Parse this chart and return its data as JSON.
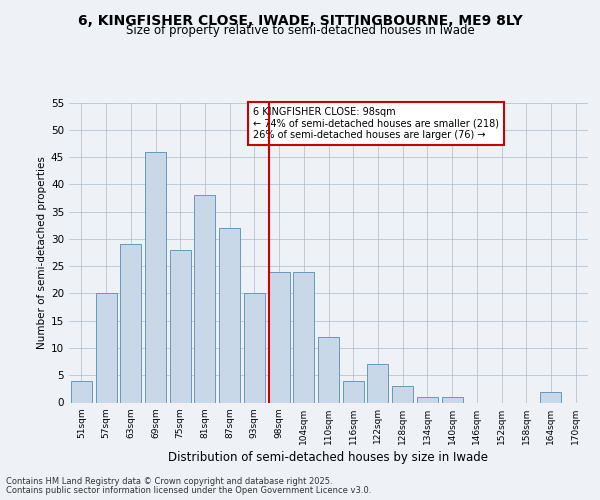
{
  "title1": "6, KINGFISHER CLOSE, IWADE, SITTINGBOURNE, ME9 8LY",
  "title2": "Size of property relative to semi-detached houses in Iwade",
  "xlabel": "Distribution of semi-detached houses by size in Iwade",
  "ylabel": "Number of semi-detached properties",
  "categories": [
    "51sqm",
    "57sqm",
    "63sqm",
    "69sqm",
    "75sqm",
    "81sqm",
    "87sqm",
    "93sqm",
    "98sqm",
    "104sqm",
    "110sqm",
    "116sqm",
    "122sqm",
    "128sqm",
    "134sqm",
    "140sqm",
    "146sqm",
    "152sqm",
    "158sqm",
    "164sqm",
    "170sqm"
  ],
  "values": [
    4,
    20,
    29,
    46,
    28,
    38,
    32,
    20,
    24,
    24,
    12,
    4,
    7,
    3,
    1,
    1,
    0,
    0,
    0,
    2,
    0
  ],
  "bar_color": "#c8d8e8",
  "bar_edge_color": "#6699bb",
  "vline_x_index": 8,
  "vline_color": "#cc0000",
  "annotation_title": "6 KINGFISHER CLOSE: 98sqm",
  "annotation_line1": "← 74% of semi-detached houses are smaller (218)",
  "annotation_line2": "26% of semi-detached houses are larger (76) →",
  "annotation_box_color": "#cc0000",
  "ylim": [
    0,
    55
  ],
  "yticks": [
    0,
    5,
    10,
    15,
    20,
    25,
    30,
    35,
    40,
    45,
    50,
    55
  ],
  "footer1": "Contains HM Land Registry data © Crown copyright and database right 2025.",
  "footer2": "Contains public sector information licensed under the Open Government Licence v3.0.",
  "bg_color": "#eef2f7",
  "title1_fontsize": 10,
  "title2_fontsize": 8.5,
  "xlabel_fontsize": 8.5,
  "ylabel_fontsize": 7.5,
  "xtick_fontsize": 6.5,
  "ytick_fontsize": 7.5,
  "ann_fontsize": 7,
  "footer_fontsize": 6
}
